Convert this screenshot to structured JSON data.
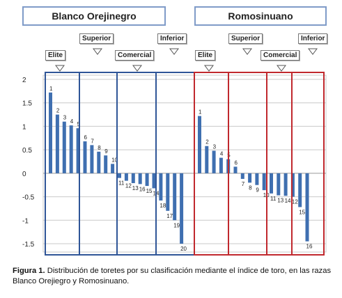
{
  "headers": {
    "left": "Blanco Orejinegro",
    "right": "Romosinuano"
  },
  "category_labels": {
    "elite": "Elite",
    "superior": "Superior",
    "comercial": "Comercial",
    "inferior": "Inferior",
    "inferior_right": "Inferior"
  },
  "caption": {
    "label": "Figura 1.",
    "text": " Distribución de toretes por su clasificación mediante el índice de toro, en las razas Blanco Orejiegro y Romosinuano."
  },
  "chart_data": {
    "type": "bar",
    "ylim": [
      -1.5,
      2
    ],
    "yticks": [
      2,
      1.5,
      1,
      0.5,
      0,
      -0.5,
      -1,
      -1.5
    ],
    "ytick_labels": [
      "2",
      "1.5",
      "1",
      "0.5",
      "0",
      "-0.5",
      "-1",
      "-1.5"
    ],
    "grid": true,
    "series": [
      {
        "group": "Blanco Orejinegro",
        "labels": [
          "1",
          "2",
          "3",
          "4",
          "5",
          "6",
          "7",
          "8",
          "9",
          "10",
          "11",
          "12",
          "13",
          "16",
          "15",
          "14",
          "18",
          "17",
          "19",
          "20"
        ],
        "values": [
          1.72,
          1.25,
          1.1,
          1.02,
          0.96,
          0.68,
          0.6,
          0.46,
          0.38,
          0.2,
          -0.1,
          -0.16,
          -0.21,
          -0.23,
          -0.27,
          -0.32,
          -0.58,
          -0.8,
          -1.0,
          -1.5
        ],
        "color": "#3f6fb0"
      },
      {
        "group": "Romosinuano",
        "labels": [
          "1",
          "2",
          "3",
          "4",
          "5",
          "6",
          "7",
          "8",
          "9",
          "10",
          "11",
          "13",
          "14",
          "12",
          "15",
          "16"
        ],
        "values": [
          1.22,
          0.58,
          0.48,
          0.33,
          0.3,
          0.14,
          -0.12,
          -0.2,
          -0.25,
          -0.36,
          -0.43,
          -0.47,
          -0.48,
          -0.5,
          -0.72,
          -1.45
        ],
        "color": "#3f6fb0"
      }
    ]
  }
}
